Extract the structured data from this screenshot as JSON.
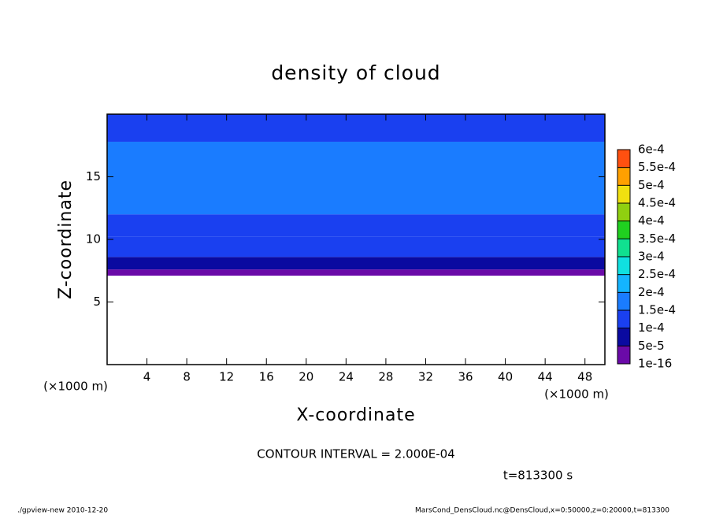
{
  "chart_data": {
    "type": "contour",
    "title": "density of cloud",
    "x_label": "X-coordinate",
    "y_label": "Z-coordinate",
    "x_unit": "(×1000 m)",
    "y_unit": "(×1000 m)",
    "contour_interval": "CONTOUR INTERVAL = 2.000E-04",
    "time_label": "t=813300 s",
    "footer_left": "./gpview-new   2010-12-20",
    "footer_right": "MarsCond_DensCloud.nc@DensCloud,x=0:50000,z=0:20000,t=813300",
    "xlim": [
      0,
      50
    ],
    "ylim": [
      0,
      20
    ],
    "xticks": [
      4,
      8,
      12,
      16,
      20,
      24,
      28,
      32,
      36,
      40,
      44,
      48
    ],
    "yticks": [
      5,
      10,
      15
    ],
    "zbins": [
      7.1,
      7.6,
      8.6,
      10.2,
      12,
      17.8,
      20
    ],
    "values": [
      3e-05,
      7e-05,
      0.00011,
      0.00013,
      0.00016,
      0.00013
    ],
    "levels": [
      {
        "value": 1e-16,
        "label": "1e-16"
      },
      {
        "value": 5e-05,
        "label": "5e-5"
      },
      {
        "value": 0.0001,
        "label": "1e-4"
      },
      {
        "value": 0.00015,
        "label": "1.5e-4"
      },
      {
        "value": 0.0002,
        "label": "2e-4"
      },
      {
        "value": 0.00025,
        "label": "2.5e-4"
      },
      {
        "value": 0.0003,
        "label": "3e-4"
      },
      {
        "value": 0.00035,
        "label": "3.5e-4"
      },
      {
        "value": 0.0004,
        "label": "4e-4"
      },
      {
        "value": 0.00045,
        "label": "4.5e-4"
      },
      {
        "value": 0.0005,
        "label": "5e-4"
      },
      {
        "value": 0.00055,
        "label": "5.5e-4"
      },
      {
        "value": 0.0006,
        "label": "6e-4"
      }
    ],
    "colors": [
      "#6a0aa8",
      "#0a0aa0",
      "#1a40f0",
      "#1a7cff",
      "#14b4ff",
      "#10e0e0",
      "#10e090",
      "#20d020",
      "#90d010",
      "#f0e010",
      "#ffa000",
      "#ff5010",
      "#ff9090"
    ]
  }
}
